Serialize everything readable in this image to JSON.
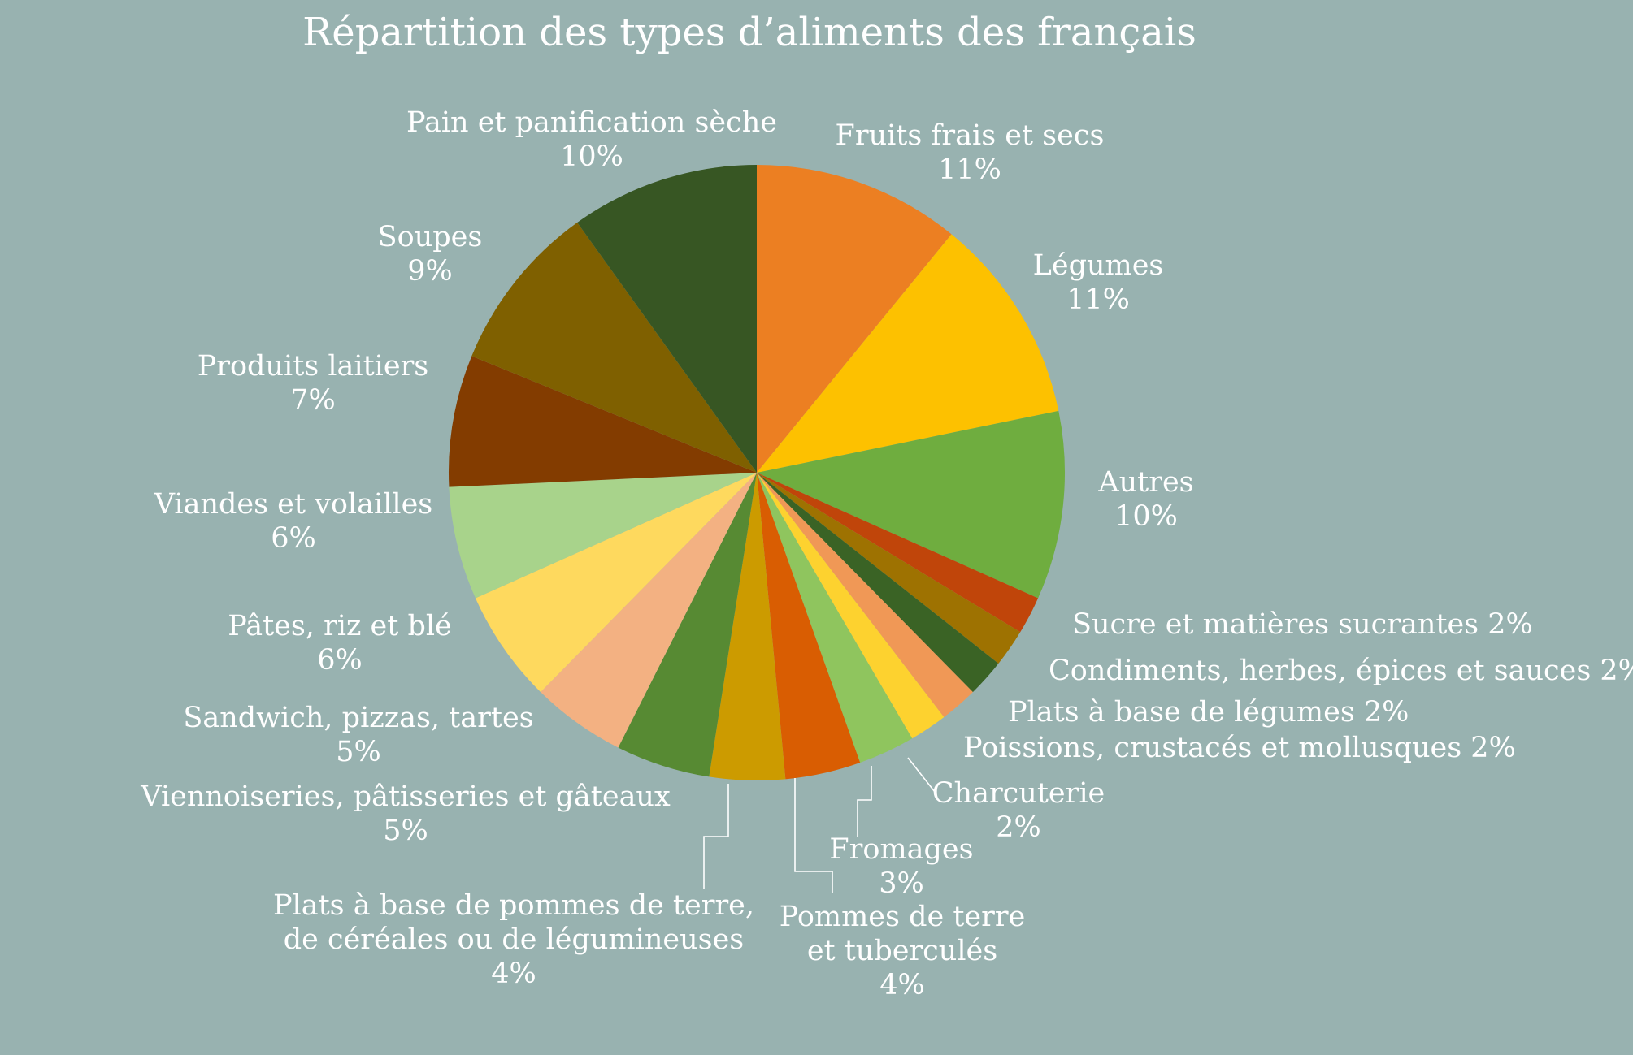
{
  "chart_data": {
    "type": "pie",
    "title": "Répartition des types d’aliments des français",
    "unit": "%",
    "slices": [
      {
        "label": "Fruits frais et secs",
        "value": 11,
        "value_label": "11%",
        "color": "#ec7f22"
      },
      {
        "label": "Légumes",
        "value": 11,
        "value_label": "11%",
        "color": "#fdc100"
      },
      {
        "label": "Autres",
        "value": 10,
        "value_label": "10%",
        "color": "#6fad3f"
      },
      {
        "label": "Sucre et matières sucrantes",
        "value": 2,
        "value_label": "2%",
        "color": "#c0450a"
      },
      {
        "label": "Condiments, herbes, épices et sauces",
        "value": 2,
        "value_label": "2%",
        "color": "#9e7201"
      },
      {
        "label": "Plats à base de légumes",
        "value": 2,
        "value_label": "2%",
        "color": "#3a6325"
      },
      {
        "label": "Poissions, crustacés et mollusques",
        "value": 2,
        "value_label": "2%",
        "color": "#f09856"
      },
      {
        "label": "Charcuterie",
        "value": 2,
        "value_label": "2%",
        "color": "#fdd22f"
      },
      {
        "label": "Fromages",
        "value": 3,
        "value_label": "3%",
        "color": "#8fc55e"
      },
      {
        "label": "Pommes de terre\net tuberculés",
        "value": 4,
        "value_label": "4%",
        "color": "#d95d02"
      },
      {
        "label": "Plats à base de pommes de terre,\nde céréales ou de légumineuses",
        "value": 4,
        "value_label": "4%",
        "color": "#cc9b00"
      },
      {
        "label": "Viennoiseries, pâtisseries et gâteaux",
        "value": 5,
        "value_label": "5%",
        "color": "#578a33"
      },
      {
        "label": "Sandwich, pizzas, tartes",
        "value": 5,
        "value_label": "5%",
        "color": "#f3b182"
      },
      {
        "label": "Pâtes, riz et blé",
        "value": 6,
        "value_label": "6%",
        "color": "#fed95e"
      },
      {
        "label": "Viandes et volailles",
        "value": 6,
        "value_label": "6%",
        "color": "#a8d38b"
      },
      {
        "label": "Produits laitiers",
        "value": 7,
        "value_label": "7%",
        "color": "#833c00"
      },
      {
        "label": "Soupes",
        "value": 9,
        "value_label": "9%",
        "color": "#7f6000"
      },
      {
        "label": "Pain et panification sèche",
        "value": 10,
        "value_label": "10%",
        "color": "#375623"
      }
    ]
  }
}
